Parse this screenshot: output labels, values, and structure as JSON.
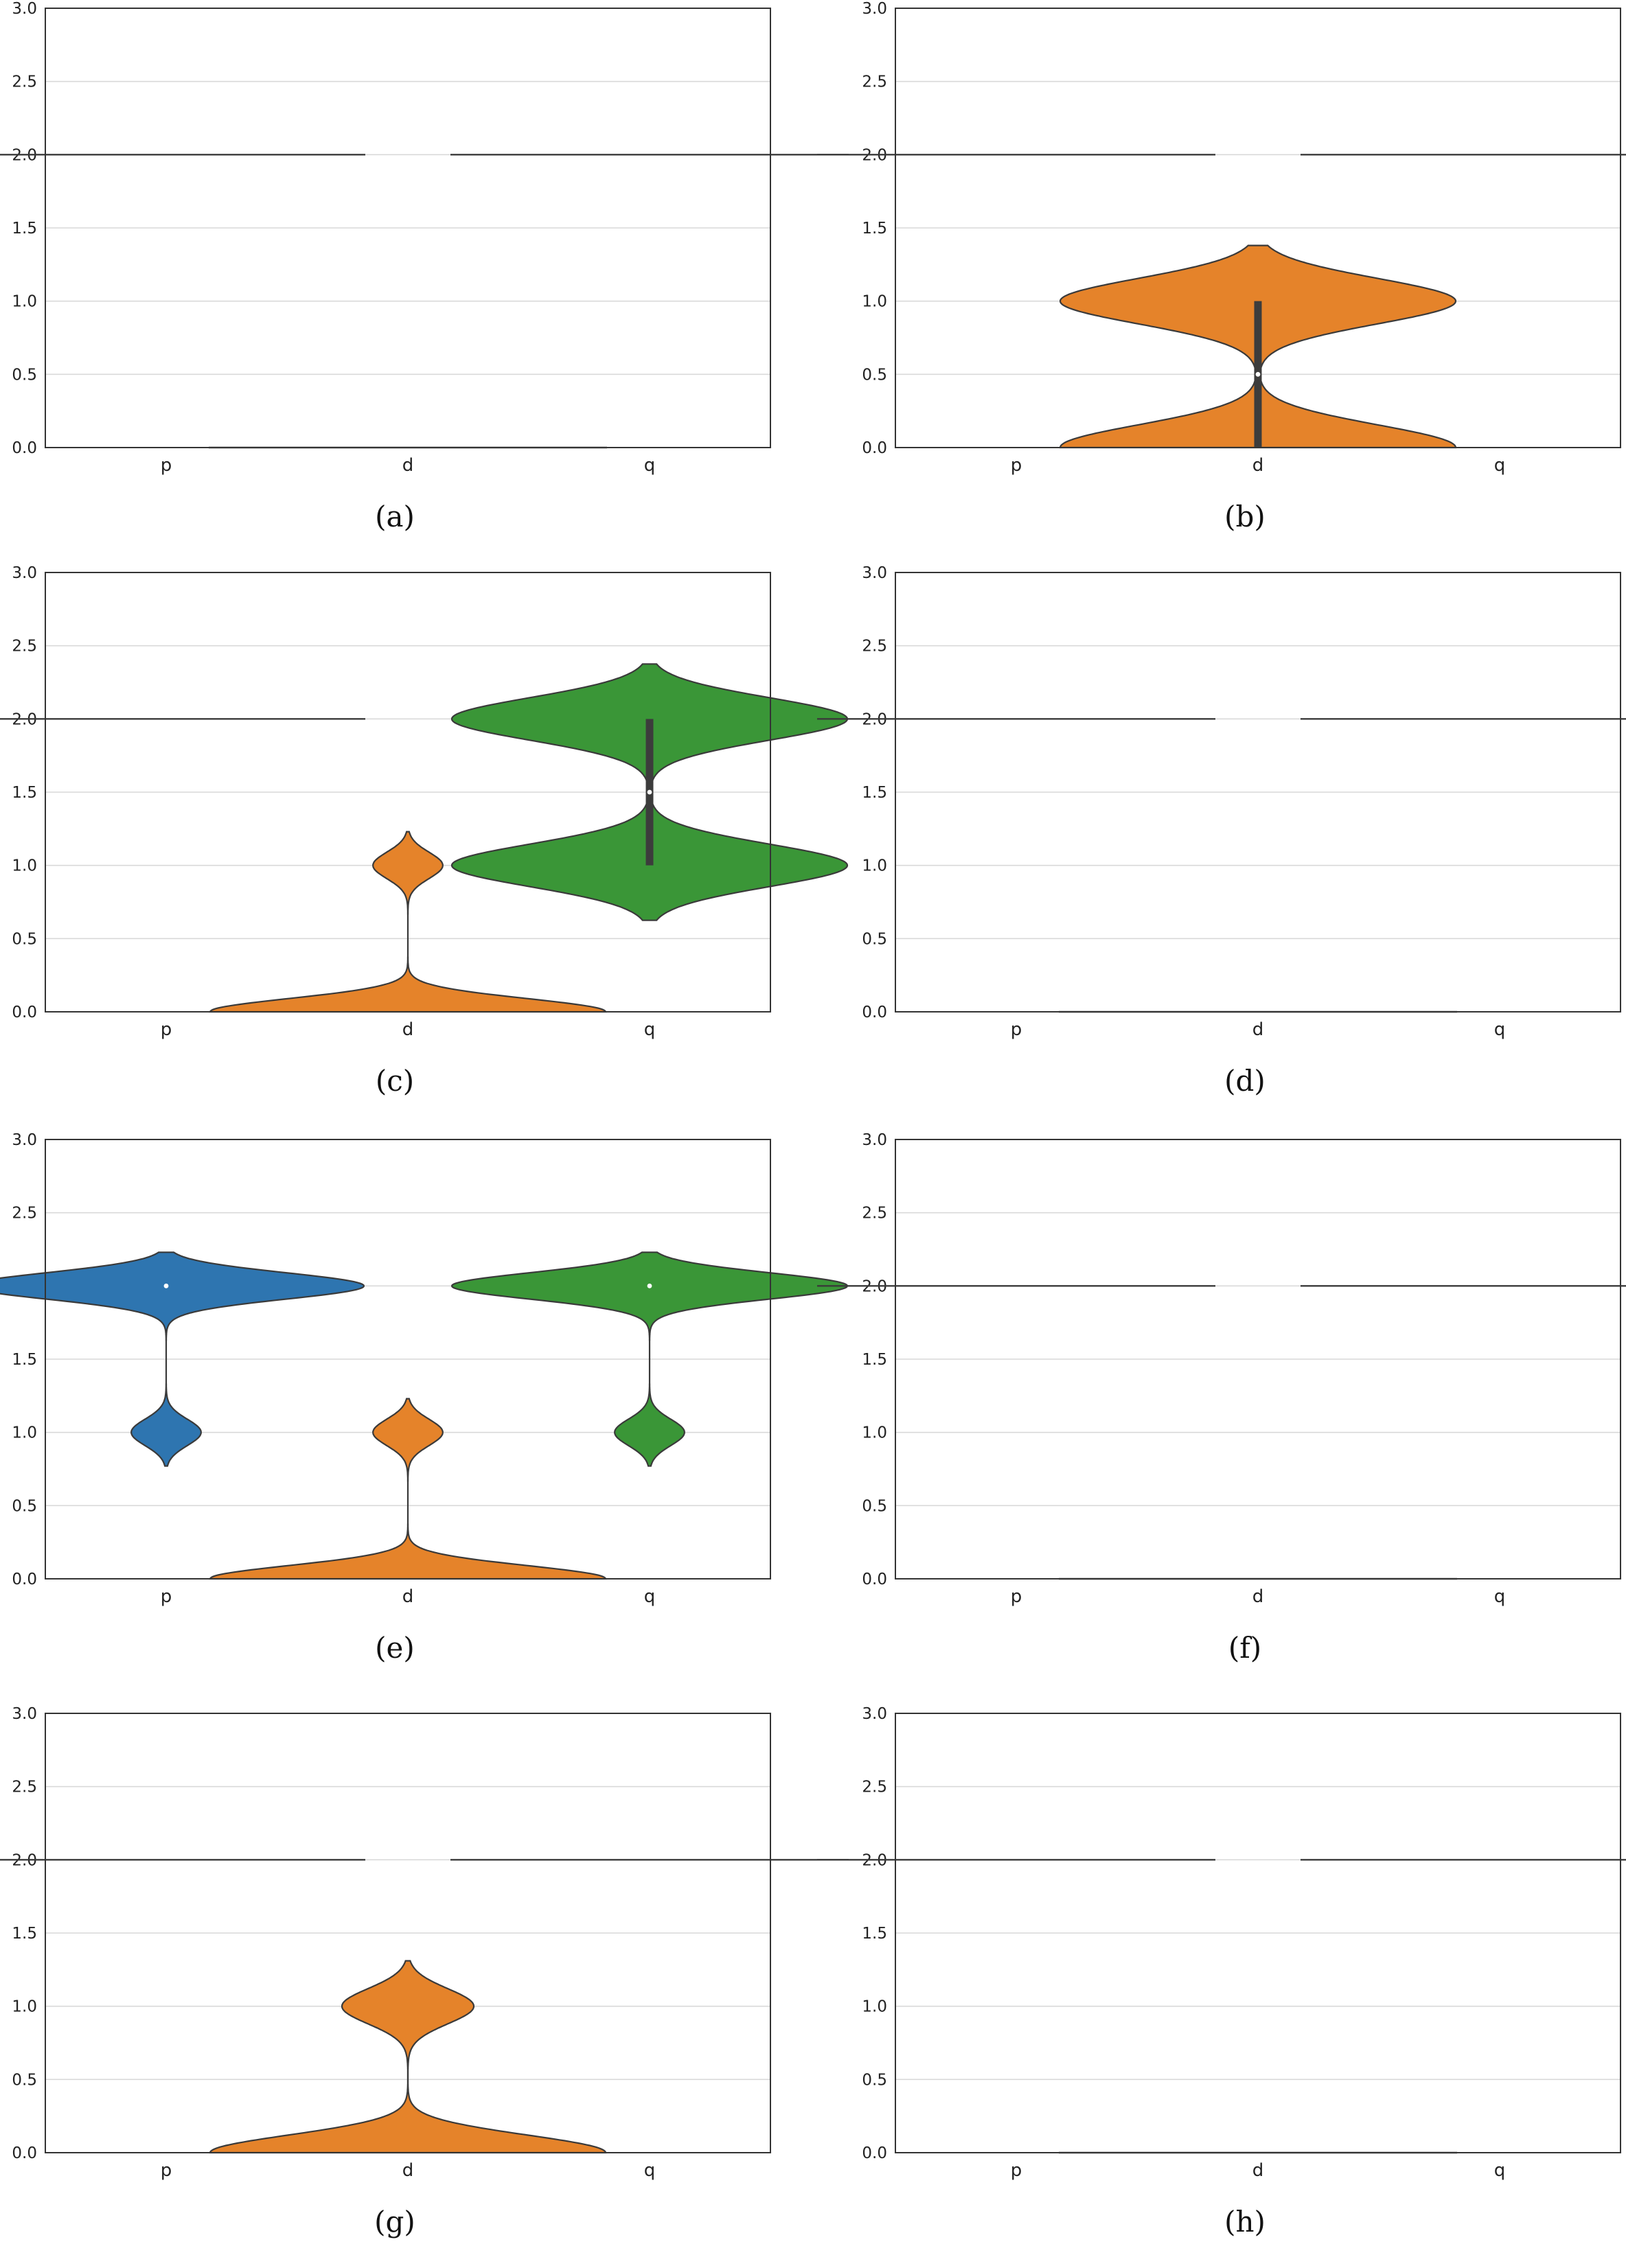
{
  "colors": {
    "p": "#2e75b0",
    "d": "#e5832a",
    "q": "#3a9637",
    "stroke": "#3a3a3a",
    "grid": "#d9d9d9",
    "box": "#3c3c3c"
  },
  "chart_data": [
    {
      "caption": "(a)",
      "type": "violin",
      "categories": [
        "p",
        "d",
        "q"
      ],
      "y_ticks": [
        "0.0",
        "0.5",
        "1.0",
        "1.5",
        "2.0",
        "2.5",
        "3.0"
      ],
      "ylim": [
        0,
        3
      ],
      "grid": true,
      "violins": [
        {
          "category": "p",
          "points": [
            [
              2.0,
              1
            ]
          ]
        },
        {
          "category": "d",
          "points": [
            [
              0.0,
              1
            ]
          ]
        },
        {
          "category": "q",
          "points": [
            [
              2.0,
              1
            ]
          ]
        }
      ]
    },
    {
      "caption": "(b)",
      "type": "violin",
      "categories": [
        "p",
        "d",
        "q"
      ],
      "y_ticks": [
        "0.0",
        "0.5",
        "1.0",
        "1.5",
        "2.0",
        "2.5",
        "3.0"
      ],
      "ylim": [
        0,
        3
      ],
      "grid": true,
      "violins": [
        {
          "category": "p",
          "points": [
            [
              2.0,
              1
            ]
          ]
        },
        {
          "category": "d",
          "points": [
            [
              0,
              1
            ],
            [
              1,
              1
            ]
          ],
          "bw": 0.155,
          "cut": 0.38,
          "box": [
            0,
            1
          ],
          "median": 0.5
        },
        {
          "category": "q",
          "points": [
            [
              2.0,
              1
            ]
          ]
        }
      ]
    },
    {
      "caption": "(c)",
      "type": "violin",
      "categories": [
        "p",
        "d",
        "q"
      ],
      "y_ticks": [
        "0.0",
        "0.5",
        "1.0",
        "1.5",
        "2.0",
        "2.5",
        "3.0"
      ],
      "ylim": [
        0,
        3
      ],
      "grid": true,
      "violins": [
        {
          "category": "p",
          "points": [
            [
              2.0,
              1
            ]
          ]
        },
        {
          "category": "d",
          "points": [
            [
              0,
              0.85
            ],
            [
              1,
              0.15
            ]
          ],
          "bw": 0.09,
          "cut": 0.23
        },
        {
          "category": "q",
          "points": [
            [
              1,
              1
            ],
            [
              2,
              1
            ]
          ],
          "bw": 0.145,
          "cut": 0.375,
          "box": [
            1,
            2
          ],
          "median": 1.5
        }
      ]
    },
    {
      "caption": "(d)",
      "type": "violin",
      "categories": [
        "p",
        "d",
        "q"
      ],
      "y_ticks": [
        "0.0",
        "0.5",
        "1.0",
        "1.5",
        "2.0",
        "2.5",
        "3.0"
      ],
      "ylim": [
        0,
        3
      ],
      "grid": true,
      "violins": [
        {
          "category": "p",
          "points": [
            [
              2.0,
              1
            ]
          ]
        },
        {
          "category": "d",
          "points": [
            [
              0.0,
              1
            ]
          ]
        },
        {
          "category": "q",
          "points": [
            [
              2.0,
              1
            ]
          ]
        }
      ]
    },
    {
      "caption": "(e)",
      "type": "violin",
      "categories": [
        "p",
        "d",
        "q"
      ],
      "y_ticks": [
        "0.0",
        "0.5",
        "1.0",
        "1.5",
        "2.0",
        "2.5",
        "3.0"
      ],
      "ylim": [
        0,
        3
      ],
      "grid": true,
      "violins": [
        {
          "category": "p",
          "points": [
            [
              2,
              0.85
            ],
            [
              1,
              0.15
            ]
          ],
          "bw": 0.09,
          "cut": 0.23,
          "median": 2.0
        },
        {
          "category": "d",
          "points": [
            [
              0,
              0.85
            ],
            [
              1,
              0.15
            ]
          ],
          "bw": 0.09,
          "cut": 0.23
        },
        {
          "category": "q",
          "points": [
            [
              2,
              0.85
            ],
            [
              1,
              0.15
            ]
          ],
          "bw": 0.09,
          "cut": 0.23,
          "median": 2.0
        }
      ]
    },
    {
      "caption": "(f)",
      "type": "violin",
      "categories": [
        "p",
        "d",
        "q"
      ],
      "y_ticks": [
        "0.0",
        "0.5",
        "1.0",
        "1.5",
        "2.0",
        "2.5",
        "3.0"
      ],
      "ylim": [
        0,
        3
      ],
      "grid": true,
      "violins": [
        {
          "category": "p",
          "points": [
            [
              2.0,
              1
            ]
          ]
        },
        {
          "category": "d",
          "points": [
            [
              0.0,
              1
            ]
          ]
        },
        {
          "category": "q",
          "points": [
            [
              2.0,
              1
            ]
          ]
        }
      ]
    },
    {
      "caption": "(g)",
      "type": "violin",
      "categories": [
        "p",
        "d",
        "q"
      ],
      "y_ticks": [
        "0.0",
        "0.5",
        "1.0",
        "1.5",
        "2.0",
        "2.5",
        "3.0"
      ],
      "ylim": [
        0,
        3
      ],
      "grid": true,
      "violins": [
        {
          "category": "p",
          "points": [
            [
              2.0,
              1
            ]
          ]
        },
        {
          "category": "d",
          "points": [
            [
              0,
              0.75
            ],
            [
              1,
              0.25
            ]
          ],
          "bw": 0.12,
          "cut": 0.31
        },
        {
          "category": "q",
          "points": [
            [
              2.0,
              1
            ]
          ]
        }
      ]
    },
    {
      "caption": "(h)",
      "type": "violin",
      "categories": [
        "p",
        "d",
        "q"
      ],
      "y_ticks": [
        "0.0",
        "0.5",
        "1.0",
        "1.5",
        "2.0",
        "2.5",
        "3.0"
      ],
      "ylim": [
        0,
        3
      ],
      "grid": true,
      "violins": [
        {
          "category": "p",
          "points": [
            [
              2.0,
              1
            ]
          ]
        },
        {
          "category": "d",
          "points": [
            [
              0.0,
              1
            ]
          ]
        },
        {
          "category": "q",
          "points": [
            [
              2.0,
              1
            ]
          ]
        }
      ]
    }
  ]
}
